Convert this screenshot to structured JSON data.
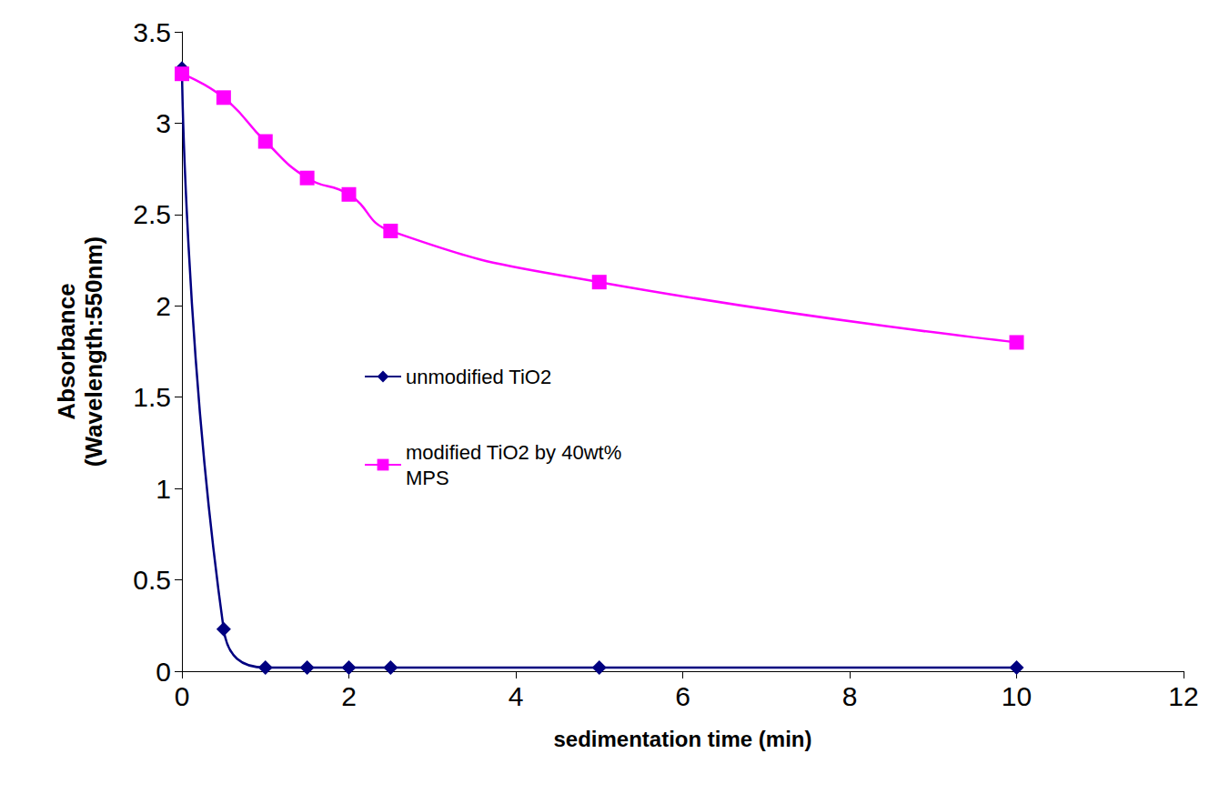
{
  "chart_data": {
    "type": "line",
    "x_label": "sedimentation time (min)",
    "y_label": "Absorbance (Wavelength:550nm)",
    "x": [
      0,
      0.5,
      1,
      1.5,
      2,
      2.5,
      5,
      10
    ],
    "series": [
      {
        "name": "unmodified TiO2",
        "color": "#000080",
        "marker": "diamond",
        "line_style": "solid",
        "values": [
          3.3,
          0.23,
          0.02,
          0.02,
          0.02,
          0.02,
          0.02,
          0.02
        ]
      },
      {
        "name": "modified TiO2 by 40wt% MPS",
        "color": "#ff00ff",
        "marker": "square",
        "line_style": "solid",
        "values": [
          3.27,
          3.14,
          2.9,
          2.7,
          2.61,
          2.41,
          2.13,
          1.8
        ]
      }
    ],
    "xlim": [
      0,
      12
    ],
    "ylim": [
      0,
      3.5
    ],
    "xticks": [
      0,
      2,
      4,
      6,
      8,
      10,
      12
    ],
    "yticks": [
      0,
      0.5,
      1,
      1.5,
      2,
      2.5,
      3,
      3.5
    ],
    "grid": false,
    "legend": "center"
  }
}
